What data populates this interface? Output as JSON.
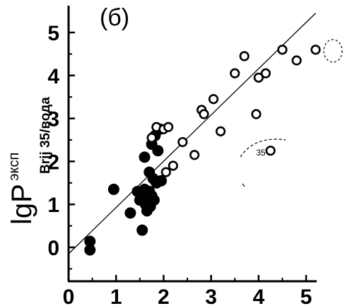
{
  "panel_label": "(б)",
  "ylabel_main": "lgP",
  "ylabel_super": "эксп",
  "ylabel_sub": "Brij 35/вода",
  "annotation": "35",
  "chart_data": {
    "type": "scatter",
    "title": "(б)",
    "xlabel": "",
    "ylabel": "lgP эксп Brij 35/вода",
    "xlim": [
      0,
      5.2
    ],
    "ylim": [
      -0.8,
      5.3
    ],
    "xticks": [
      0,
      1,
      2,
      3,
      4,
      5
    ],
    "yticks": [
      0,
      1,
      2,
      3,
      4,
      5
    ],
    "grid": false,
    "series": [
      {
        "marker": "filled-circle",
        "color": "#000000",
        "points": [
          [
            0.45,
            0.14
          ],
          [
            0.45,
            -0.06
          ],
          [
            0.95,
            1.35
          ],
          [
            1.3,
            0.8
          ],
          [
            1.45,
            1.3
          ],
          [
            1.5,
            1.1
          ],
          [
            1.55,
            0.4
          ],
          [
            1.6,
            2.1
          ],
          [
            1.6,
            1.35
          ],
          [
            1.62,
            1.0
          ],
          [
            1.65,
            0.85
          ],
          [
            1.65,
            1.15
          ],
          [
            1.7,
            1.75
          ],
          [
            1.7,
            1.3
          ],
          [
            1.72,
            0.95
          ],
          [
            1.75,
            2.4
          ],
          [
            1.75,
            1.2
          ],
          [
            1.78,
            1.6
          ],
          [
            1.8,
            1.1
          ],
          [
            1.82,
            2.6
          ],
          [
            1.85,
            1.5
          ],
          [
            1.88,
            2.25
          ],
          [
            1.92,
            2.75
          ],
          [
            1.95,
            1.55
          ]
        ]
      },
      {
        "marker": "open-circle",
        "color": "#000000",
        "points": [
          [
            1.75,
            2.55
          ],
          [
            1.85,
            2.8
          ],
          [
            2.0,
            2.75
          ],
          [
            2.05,
            1.75
          ],
          [
            2.1,
            2.8
          ],
          [
            2.2,
            1.9
          ],
          [
            2.4,
            2.45
          ],
          [
            2.65,
            2.15
          ],
          [
            2.8,
            3.2
          ],
          [
            2.85,
            3.1
          ],
          [
            3.05,
            3.45
          ],
          [
            3.2,
            2.7
          ],
          [
            3.5,
            4.05
          ],
          [
            3.7,
            4.45
          ],
          [
            3.95,
            3.1
          ],
          [
            4.0,
            3.95
          ],
          [
            4.15,
            4.05
          ],
          [
            4.25,
            2.25
          ],
          [
            4.5,
            4.6
          ],
          [
            4.8,
            4.35
          ],
          [
            5.2,
            4.6
          ]
        ]
      }
    ],
    "trendline": {
      "x": [
        0,
        5.2
      ],
      "y": [
        -0.15,
        5.45
      ]
    }
  }
}
